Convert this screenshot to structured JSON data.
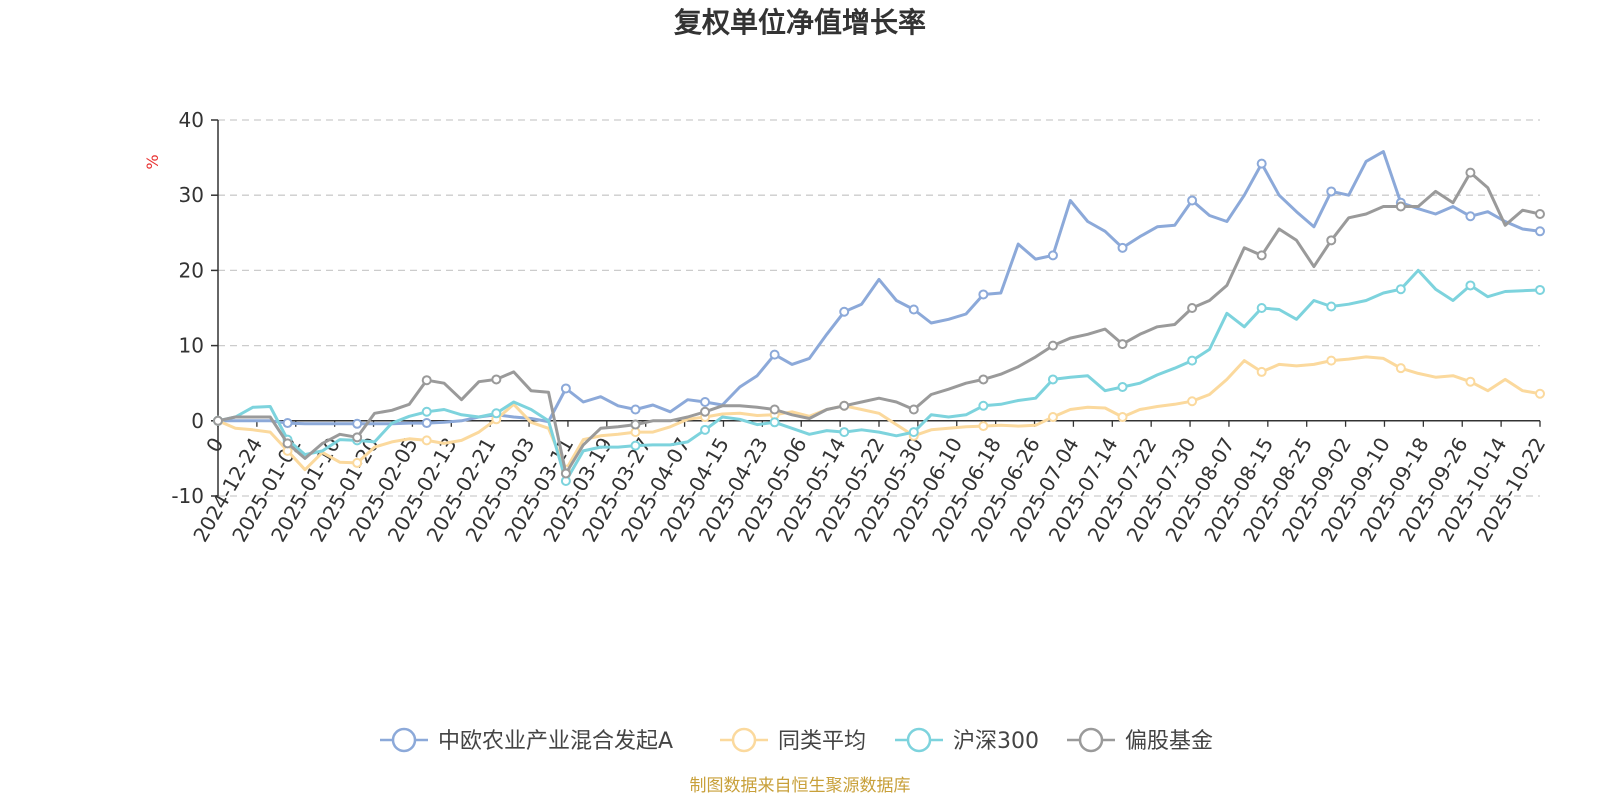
{
  "chart_data": {
    "type": "line",
    "title": "复权单位净值增长率",
    "ylabel": "%",
    "ylim": [
      -10,
      40
    ],
    "yticks": [
      -10,
      0,
      10,
      20,
      30,
      40
    ],
    "x_tick_labels": [
      "0",
      "2024-12-24",
      "2025-01-02",
      "2025-01-10",
      "2025-01-20",
      "2025-02-05",
      "2025-02-13",
      "2025-02-21",
      "2025-03-03",
      "2025-03-11",
      "2025-03-19",
      "2025-03-27",
      "2025-04-07",
      "2025-04-15",
      "2025-04-23",
      "2025-05-06",
      "2025-05-14",
      "2025-05-22",
      "2025-05-30",
      "2025-06-10",
      "2025-06-18",
      "2025-06-26",
      "2025-07-04",
      "2025-07-14",
      "2025-07-22",
      "2025-07-30",
      "2025-08-07",
      "2025-08-15",
      "2025-08-25",
      "2025-09-02",
      "2025-09-10",
      "2025-09-18",
      "2025-09-26",
      "2025-10-14",
      "2025-10-22"
    ],
    "grid": true,
    "legend_position": "bottom",
    "series": [
      {
        "name": "中欧农业产业混合发起A",
        "color": "#8ca9d9",
        "values": [
          0,
          0,
          0,
          0,
          -0.3,
          -0.4,
          -0.4,
          -0.4,
          -0.4,
          -0.4,
          -0.4,
          -0.3,
          -0.3,
          -0.2,
          0,
          0.5,
          0.8,
          0.5,
          0.3,
          -0.1,
          4.3,
          2.5,
          3.2,
          2,
          1.5,
          2.1,
          1.2,
          2.8,
          2.5,
          2.1,
          4.5,
          6,
          8.8,
          7.5,
          8.3,
          11.5,
          14.5,
          15.5,
          18.8,
          16,
          14.8,
          13,
          13.5,
          14.2,
          16.8,
          17,
          23.5,
          21.5,
          22,
          29.3,
          26.5,
          25.2,
          23,
          24.5,
          25.8,
          26,
          29.3,
          27.3,
          26.5,
          30,
          34.2,
          30,
          27.8,
          25.8,
          30.5,
          30,
          34.5,
          35.8,
          29,
          28.2,
          27.5,
          28.5,
          27.2,
          27.8,
          26.5,
          25.5,
          25.2
        ]
      },
      {
        "name": "同类平均",
        "color": "#fbd99d",
        "values": [
          0,
          -1,
          -1.2,
          -1.5,
          -4,
          -6.5,
          -4.2,
          -5.5,
          -5.6,
          -3.5,
          -2.8,
          -2.4,
          -2.6,
          -3,
          -2.6,
          -1.5,
          0.2,
          2.2,
          -0.2,
          -1,
          -6.5,
          -2.5,
          -2,
          -1.8,
          -1.5,
          -1.5,
          -0.8,
          0.2,
          0.5,
          0.9,
          1,
          0.7,
          0.8,
          1.2,
          0.6,
          1.5,
          2,
          1.5,
          1,
          -0.5,
          -2,
          -1.2,
          -1,
          -0.8,
          -0.7,
          -0.6,
          -0.7,
          -0.6,
          0.5,
          1.5,
          1.8,
          1.7,
          0.5,
          1.5,
          1.9,
          2.2,
          2.6,
          3.5,
          5.5,
          8,
          6.5,
          7.5,
          7.3,
          7.5,
          8,
          8.2,
          8.5,
          8.3,
          7,
          6.3,
          5.8,
          6,
          5.2,
          4,
          5.5,
          4,
          3.6
        ]
      },
      {
        "name": "沪深300",
        "color": "#7dd3dd",
        "values": [
          0,
          0.5,
          1.8,
          1.9,
          -2.5,
          -4.5,
          -4,
          -2.5,
          -2.6,
          -2.8,
          -0.3,
          0.6,
          1.2,
          1.5,
          0.8,
          0.5,
          1,
          2.5,
          1.5,
          0,
          -8,
          -4,
          -3.5,
          -3.5,
          -3.3,
          -3.2,
          -3.2,
          -2.8,
          -1.2,
          0.5,
          0.2,
          -0.5,
          -0.2,
          -1,
          -1.8,
          -1.3,
          -1.5,
          -1.2,
          -1.5,
          -2,
          -1.5,
          0.8,
          0.5,
          0.8,
          2,
          2.2,
          2.7,
          3,
          5.5,
          5.8,
          6,
          4,
          4.5,
          5,
          6.1,
          7,
          8,
          9.5,
          14.3,
          12.5,
          15,
          14.8,
          13.5,
          16,
          15.2,
          15.5,
          16,
          17,
          17.5,
          20,
          17.5,
          16,
          18,
          16.5,
          17.2,
          17.3,
          17.4
        ]
      },
      {
        "name": "偏股基金",
        "color": "#9a9a9a",
        "values": [
          0,
          0.5,
          0.5,
          0.5,
          -3,
          -5,
          -3,
          -1.8,
          -2.2,
          1,
          1.4,
          2.2,
          5.4,
          5,
          2.8,
          5.2,
          5.5,
          6.5,
          4,
          3.8,
          -7,
          -3.2,
          -1,
          -0.8,
          -0.5,
          0,
          0,
          0.5,
          1.2,
          2,
          2,
          1.8,
          1.5,
          0.8,
          0.3,
          1.5,
          2,
          2.5,
          3,
          2.5,
          1.5,
          3.5,
          4.2,
          5,
          5.5,
          6.2,
          7.2,
          8.5,
          10,
          11,
          11.5,
          12.2,
          10.2,
          11.5,
          12.5,
          12.8,
          15,
          16,
          18,
          23,
          22,
          25.5,
          24,
          20.5,
          24,
          27,
          27.5,
          28.5,
          28.5,
          28.5,
          30.5,
          29,
          33,
          31,
          26,
          28,
          27.5
        ]
      }
    ]
  },
  "footer": {
    "source": "制图数据来自恒生聚源数据库",
    "source_color": "#c8a03a"
  },
  "colors": {
    "axis": "#333333",
    "grid": "#cccccc",
    "ylabel": "#e8302f"
  }
}
